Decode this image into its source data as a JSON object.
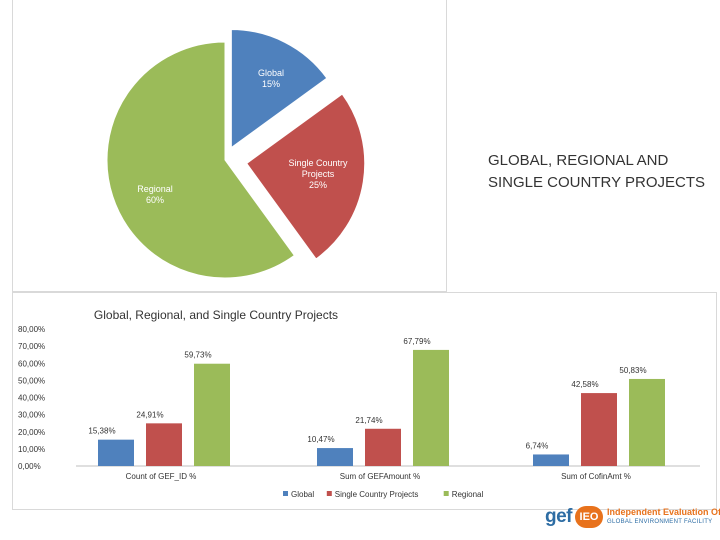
{
  "side_title": "GLOBAL, REGIONAL AND SINGLE COUNTRY PROJECTS",
  "colors": {
    "global": "#4f81bd",
    "single": "#c0504d",
    "regional": "#9bbb59"
  },
  "chart_data": [
    {
      "type": "pie",
      "title": "",
      "slices": [
        {
          "label": "Global",
          "pct_label": "15%",
          "value": 15,
          "color": "#4f81bd"
        },
        {
          "label": "Single Country Projects",
          "pct_label": "25%",
          "value": 25,
          "color": "#c0504d"
        },
        {
          "label": "Regional",
          "pct_label": "60%",
          "value": 60,
          "color": "#9bbb59"
        }
      ]
    },
    {
      "type": "bar",
      "title": "Global, Regional, and Single Country Projects",
      "categories": [
        "Count of GEF_ID %",
        "Sum of GEFAmount %",
        "Sum of CofinAmt %"
      ],
      "series": [
        {
          "name": "Global",
          "color": "#4f81bd",
          "values": [
            15.38,
            10.47,
            6.74
          ],
          "labels": [
            "15,38%",
            "10,47%",
            "6,74%"
          ]
        },
        {
          "name": "Single Country Projects",
          "color": "#c0504d",
          "values": [
            24.91,
            21.74,
            42.58
          ],
          "labels": [
            "24,91%",
            "21,74%",
            "42,58%"
          ]
        },
        {
          "name": "Regional",
          "color": "#9bbb59",
          "values": [
            59.73,
            67.79,
            50.83
          ],
          "labels": [
            "59,73%",
            "67,79%",
            "50,83%"
          ]
        }
      ],
      "ylim": [
        0,
        80
      ],
      "yticks": [
        {
          "v": 0,
          "label": "0,00%"
        },
        {
          "v": 10,
          "label": "10,00%"
        },
        {
          "v": 20,
          "label": "20,00%"
        },
        {
          "v": 30,
          "label": "30,00%"
        },
        {
          "v": 40,
          "label": "40,00%"
        },
        {
          "v": 50,
          "label": "50,00%"
        },
        {
          "v": 60,
          "label": "60,00%"
        },
        {
          "v": 70,
          "label": "70,00%"
        },
        {
          "v": 80,
          "label": "80,00%"
        }
      ],
      "grid": false,
      "legend": "bottom"
    }
  ],
  "logo": {
    "brand": "gef",
    "badge": "IEO",
    "line1": "Independent Evaluation Office",
    "line2": "GLOBAL ENVIRONMENT FACILITY"
  }
}
